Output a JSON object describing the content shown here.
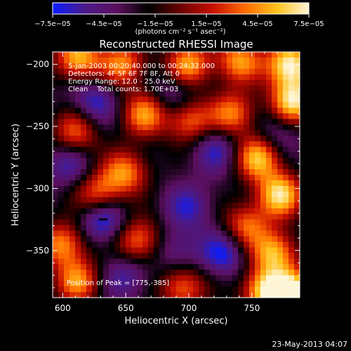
{
  "chart_data": {
    "type": "heatmap",
    "title": "Reconstructed RHESSI Image",
    "xlabel": "Heliocentric X (arcsec)",
    "ylabel": "Heliocentric Y (arcsec)",
    "xlim": [
      592,
      788
    ],
    "ylim": [
      -388,
      -190
    ],
    "x_ticks": [
      600,
      650,
      700,
      750
    ],
    "y_ticks": [
      -200,
      -250,
      -300,
      -350
    ],
    "x_tick_labels": [
      "600",
      "650",
      "700",
      "750"
    ],
    "y_tick_labels": [
      "−200",
      "−250",
      "−300",
      "−350"
    ],
    "colorbar": {
      "range": [
        -7.5e-05,
        7.5e-05
      ],
      "tick_values": [
        -7.5e-05,
        -4.5e-05,
        -1.5e-05,
        1.5e-05,
        4.5e-05,
        7.5e-05
      ],
      "tick_labels": [
        "−7.5e−05",
        "−4.5e−05",
        "−1.5e−05",
        "1.5e−05",
        "4.5e−05",
        "7.5e−05"
      ],
      "units_label": "(photons cm⁻² s⁻¹ asec⁻²)",
      "colors": [
        "#0a1cff",
        "#4a1a8a",
        "#5b0f5e",
        "#000000",
        "#6b0000",
        "#c81000",
        "#ff6a00",
        "#ffc21a",
        "#fff6d8"
      ]
    },
    "annotations": [
      "5-Jan-2003 00:20:40.000 to 00:24:32.000",
      "Detectors: 4F 5F 6F 7F 8F, Att 0",
      "Energy Range: 12.0 - 25.0 keV",
      "Clean    Total counts: 1.70E+03"
    ],
    "peak_label": "Position of Peak = [775,-385]",
    "marker": {
      "x": 632,
      "y": -325
    },
    "hot_spots": [
      {
        "x": 612,
        "y": -195,
        "v": 0.75
      },
      {
        "x": 648,
        "y": -200,
        "v": 0.55
      },
      {
        "x": 700,
        "y": -200,
        "v": 0.65
      },
      {
        "x": 740,
        "y": -197,
        "v": 0.6
      },
      {
        "x": 780,
        "y": -200,
        "v": 1.0
      },
      {
        "x": 783,
        "y": -230,
        "v": 0.9
      },
      {
        "x": 665,
        "y": -240,
        "v": 0.6
      },
      {
        "x": 700,
        "y": -245,
        "v": 0.5
      },
      {
        "x": 610,
        "y": -255,
        "v": 0.45
      },
      {
        "x": 735,
        "y": -240,
        "v": 0.55
      },
      {
        "x": 650,
        "y": -287,
        "v": 0.55
      },
      {
        "x": 755,
        "y": -275,
        "v": 0.75
      },
      {
        "x": 772,
        "y": -305,
        "v": 0.85
      },
      {
        "x": 628,
        "y": -305,
        "v": 0.5
      },
      {
        "x": 600,
        "y": -345,
        "v": 0.6
      },
      {
        "x": 660,
        "y": -342,
        "v": 0.55
      },
      {
        "x": 745,
        "y": -330,
        "v": 0.45
      },
      {
        "x": 768,
        "y": -352,
        "v": 0.7
      },
      {
        "x": 612,
        "y": -375,
        "v": 0.55
      },
      {
        "x": 695,
        "y": -380,
        "v": 0.5
      },
      {
        "x": 760,
        "y": -383,
        "v": 0.8
      },
      {
        "x": 783,
        "y": -385,
        "v": 1.0
      }
    ],
    "cold_spots": [
      {
        "x": 625,
        "y": -230,
        "v": -0.55
      },
      {
        "x": 688,
        "y": -225,
        "v": -0.45
      },
      {
        "x": 722,
        "y": -268,
        "v": -0.5
      },
      {
        "x": 605,
        "y": -280,
        "v": -0.45
      },
      {
        "x": 632,
        "y": -325,
        "v": -0.75
      },
      {
        "x": 700,
        "y": -315,
        "v": -0.45
      },
      {
        "x": 728,
        "y": -352,
        "v": -0.6
      },
      {
        "x": 690,
        "y": -350,
        "v": -0.4
      },
      {
        "x": 650,
        "y": -370,
        "v": -0.45
      },
      {
        "x": 770,
        "y": -255,
        "v": -0.4
      }
    ]
  },
  "footer": {
    "timestamp": "23-May-2013 04:07"
  }
}
